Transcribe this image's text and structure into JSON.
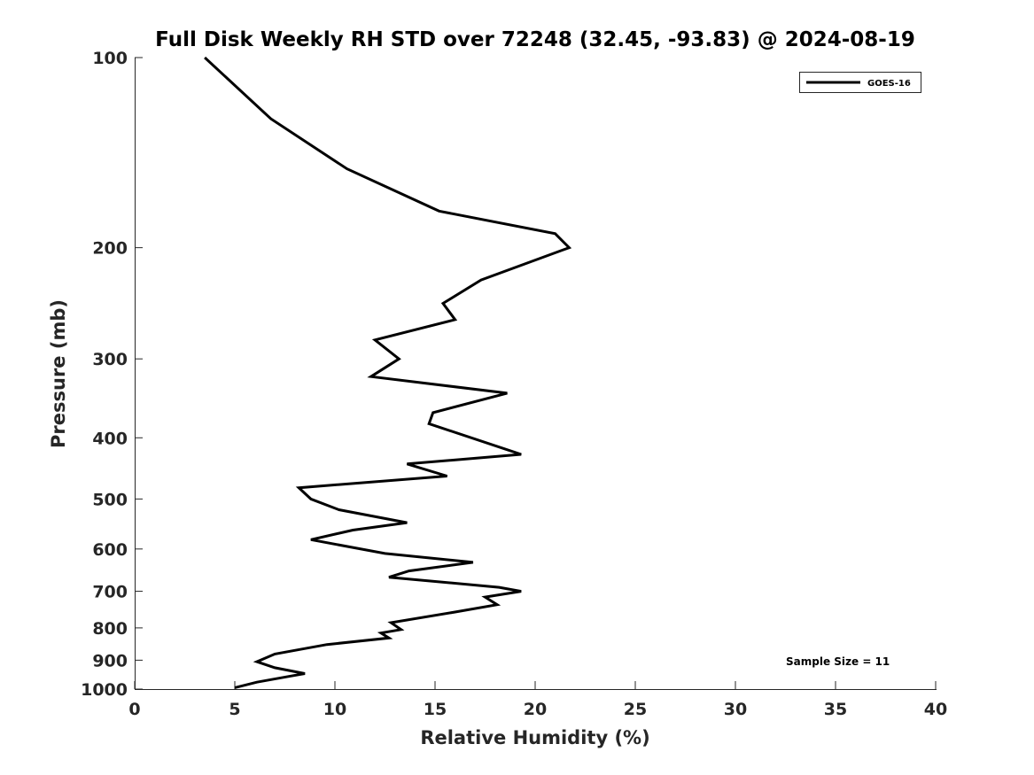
{
  "chart_data": {
    "type": "line",
    "title": "Full Disk Weekly RH STD over 72248 (32.45, -93.83) @ 2024-08-19",
    "xlabel": "Relative Humidity (%)",
    "ylabel": "Pressure (mb)",
    "xlim": [
      0,
      40
    ],
    "ylim": [
      100,
      1000
    ],
    "y_scale": "log",
    "y_inverted": true,
    "grid": false,
    "legend_position": "top-right",
    "xticks": [
      0,
      5,
      10,
      15,
      20,
      25,
      30,
      35,
      40
    ],
    "yticks": [
      100,
      200,
      300,
      400,
      500,
      600,
      700,
      800,
      900,
      1000
    ],
    "annotation": "Sample Size = 11",
    "series": [
      {
        "name": "GOES-16",
        "color": "#000000",
        "points": [
          [
            3.5,
            100
          ],
          [
            6.8,
            125
          ],
          [
            10.6,
            150
          ],
          [
            15.2,
            175
          ],
          [
            21.0,
            190
          ],
          [
            21.7,
            200
          ],
          [
            17.3,
            225
          ],
          [
            15.4,
            245
          ],
          [
            16.0,
            260
          ],
          [
            12.0,
            280
          ],
          [
            13.2,
            300
          ],
          [
            11.8,
            320
          ],
          [
            18.6,
            340
          ],
          [
            14.9,
            365
          ],
          [
            14.7,
            380
          ],
          [
            19.3,
            425
          ],
          [
            13.6,
            440
          ],
          [
            15.6,
            460
          ],
          [
            8.2,
            480
          ],
          [
            8.8,
            500
          ],
          [
            10.2,
            520
          ],
          [
            13.6,
            545
          ],
          [
            10.9,
            560
          ],
          [
            8.8,
            580
          ],
          [
            12.5,
            610
          ],
          [
            16.9,
            630
          ],
          [
            13.7,
            650
          ],
          [
            12.7,
            665
          ],
          [
            18.2,
            690
          ],
          [
            19.3,
            700
          ],
          [
            17.5,
            715
          ],
          [
            18.1,
            735
          ],
          [
            16.0,
            755
          ],
          [
            12.8,
            785
          ],
          [
            13.3,
            805
          ],
          [
            12.3,
            815
          ],
          [
            12.7,
            830
          ],
          [
            9.6,
            850
          ],
          [
            7.0,
            880
          ],
          [
            6.1,
            905
          ],
          [
            7.0,
            925
          ],
          [
            8.5,
            945
          ],
          [
            7.7,
            955
          ],
          [
            6.1,
            975
          ],
          [
            5.0,
            995
          ]
        ]
      }
    ]
  }
}
